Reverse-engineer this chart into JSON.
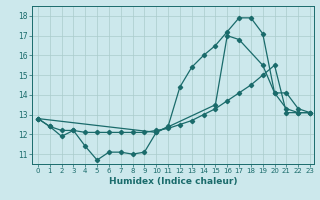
{
  "xlabel": "Humidex (Indice chaleur)",
  "bg_color": "#cce8ec",
  "line_color": "#1a6b6b",
  "grid_color": "#aacccc",
  "xlim": [
    -0.5,
    23.3
  ],
  "ylim": [
    10.5,
    18.5
  ],
  "xticks": [
    0,
    1,
    2,
    3,
    4,
    5,
    6,
    7,
    8,
    9,
    10,
    11,
    12,
    13,
    14,
    15,
    16,
    17,
    18,
    19,
    20,
    21,
    22,
    23
  ],
  "yticks": [
    11,
    12,
    13,
    14,
    15,
    16,
    17,
    18
  ],
  "series1_x": [
    0,
    1,
    2,
    3,
    4,
    5,
    6,
    7,
    8,
    9,
    10,
    11,
    12,
    13,
    14,
    15,
    16,
    17,
    18,
    19,
    20,
    21,
    22,
    23
  ],
  "series1_y": [
    12.8,
    12.4,
    11.9,
    12.2,
    11.4,
    10.7,
    11.1,
    11.1,
    11.0,
    11.1,
    12.1,
    12.4,
    14.4,
    15.4,
    16.0,
    16.5,
    17.2,
    17.9,
    17.9,
    17.1,
    14.1,
    13.3,
    13.1,
    13.1
  ],
  "series2_x": [
    0,
    1,
    2,
    3,
    4,
    5,
    6,
    7,
    8,
    9,
    10,
    11,
    12,
    13,
    14,
    15,
    16,
    17,
    18,
    19,
    20,
    21,
    22,
    23
  ],
  "series2_y": [
    12.8,
    12.4,
    12.2,
    12.2,
    12.1,
    12.1,
    12.1,
    12.1,
    12.1,
    12.1,
    12.2,
    12.3,
    12.5,
    12.7,
    13.0,
    13.3,
    13.7,
    14.1,
    14.5,
    15.0,
    15.5,
    13.1,
    13.1,
    13.1
  ],
  "series3_x": [
    0,
    10,
    15,
    16,
    17,
    19,
    20,
    21,
    22,
    23
  ],
  "series3_y": [
    12.8,
    12.1,
    13.5,
    17.0,
    16.8,
    15.5,
    14.1,
    14.1,
    13.3,
    13.1
  ]
}
